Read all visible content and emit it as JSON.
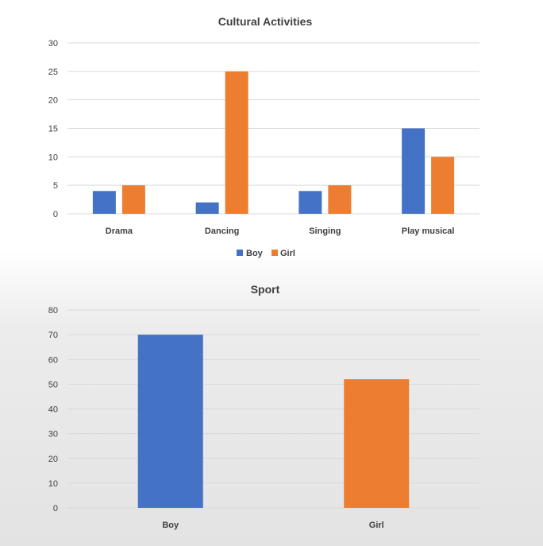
{
  "chart_data": [
    {
      "type": "bar",
      "title": "Cultural Activities",
      "categories": [
        "Drama",
        "Dancing",
        "Singing",
        "Play musical"
      ],
      "series": [
        {
          "name": "Boy",
          "values": [
            4,
            2,
            4,
            15
          ],
          "color": "#4472c4"
        },
        {
          "name": "Girl",
          "values": [
            5,
            25,
            5,
            10
          ],
          "color": "#ed7d31"
        }
      ],
      "ylim": [
        0,
        30
      ],
      "yticks": [
        "0",
        "5",
        "10",
        "15",
        "20",
        "25",
        "30"
      ],
      "grid": true,
      "legend": "bottom"
    },
    {
      "type": "bar",
      "title": "Sport",
      "categories": [
        "Boy",
        "Girl"
      ],
      "values": [
        70,
        52
      ],
      "colors": [
        "#4472c4",
        "#ed7d31"
      ],
      "ylim": [
        0,
        80
      ],
      "yticks": [
        "0",
        "10",
        "20",
        "30",
        "40",
        "50",
        "60",
        "70",
        "80"
      ],
      "grid": true,
      "legend": "none"
    }
  ]
}
